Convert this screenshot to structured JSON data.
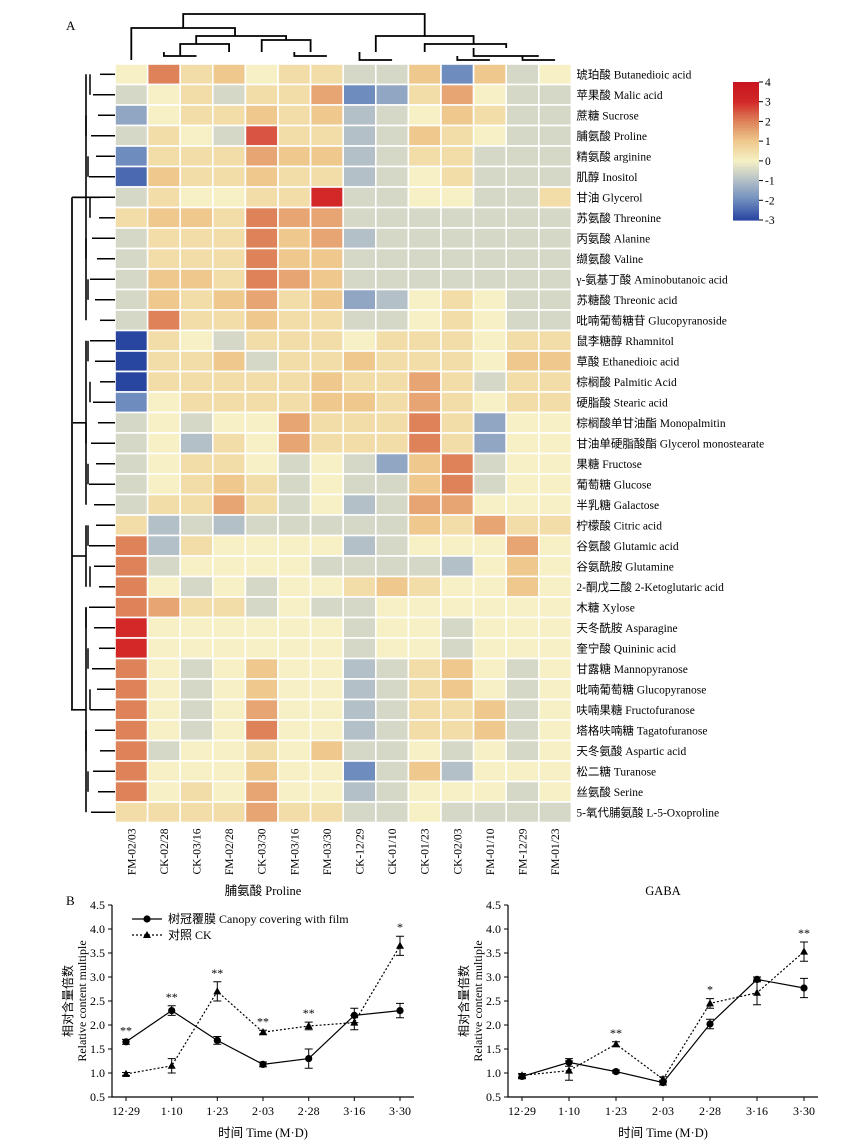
{
  "panels": {
    "a": "A",
    "b": "B"
  },
  "chart_data": [
    {
      "type": "heatmap",
      "columns": [
        "FM-02/03",
        "CK-02/28",
        "CK-03/16",
        "FM-02/28",
        "CK-03/30",
        "FM-03/16",
        "FM-03/30",
        "CK-12/29",
        "CK-01/10",
        "CK-01/23",
        "CK-02/03",
        "FM-01/10",
        "FM-12/29",
        "FM-01/23"
      ],
      "rows": [
        "琥珀酸 Butanedioic acid",
        "苹果酸 Malic acid",
        "蔗糖 Sucrose",
        "脯氨酸 Proline",
        "精氨酸 arginine",
        "肌醇 Inositol",
        "甘油 Glycerol",
        "苏氨酸 Threonine",
        "丙氨酸 Alanine",
        "缬氨酸 Valine",
        "γ-氨基丁酸 Aminobutanoic acid",
        "苏糖酸 Threonic acid",
        "吡喃葡萄糖苷 Glucopyranoside",
        "鼠李糖醇 Rhamnitol",
        "草酸 Ethanedioic acid",
        "棕榈酸 Palmitic Acid",
        "硬脂酸 Stearic acid",
        "棕榈酸单甘油酯 Monopalmitin",
        "甘油单硬脂酸酯 Glycerol monostearate",
        "果糖 Fructose",
        "葡萄糖 Glucose",
        "半乳糖 Galactose",
        "柠檬酸 Citric acid",
        "谷氨酸 Glutamic acid",
        "谷氨酰胺 Glutamine",
        "2-酮戊二酸 2-Ketoglutaric acid",
        "木糖 Xylose",
        "天冬酰胺 Asparagine",
        "奎宁酸 Quininic acid",
        "甘露糖 Mannopyranose",
        "吡喃葡萄糖 Glucopyranose",
        "呋喃果糖 Fructofuranose",
        "塔格呋喃糖 Tagatofuranose",
        "天冬氨酸 Aspartic acid",
        "松二糖 Turanose",
        "丝氨酸 Serine",
        "5-氧代脯氨酸 L-5-Oxoproline"
      ],
      "values": [
        [
          0,
          2,
          0.5,
          1,
          0,
          0.5,
          0.5,
          -0.5,
          -0.5,
          1,
          -2,
          1,
          -0.5,
          0
        ],
        [
          -0.5,
          0,
          0.5,
          -0.5,
          0.5,
          0.5,
          1.5,
          -2,
          -1.5,
          0.5,
          1.5,
          0,
          -0.5,
          -0.5
        ],
        [
          -1.5,
          0,
          0.5,
          0.5,
          1,
          0.5,
          1,
          -1,
          -0.5,
          0,
          1,
          0.5,
          -0.5,
          -0.5
        ],
        [
          -0.5,
          0.5,
          0,
          -0.5,
          2.5,
          0.5,
          0.5,
          -1,
          -0.5,
          1,
          0.5,
          0,
          -0.5,
          -0.5
        ],
        [
          -2,
          0.5,
          0.5,
          0.5,
          1.5,
          1,
          1,
          -1,
          -0.5,
          0.5,
          0.5,
          -0.5,
          -0.5,
          -0.5
        ],
        [
          -2.5,
          1,
          0.5,
          0.5,
          1,
          0.5,
          0.5,
          -1,
          -0.5,
          0,
          0.5,
          -0.5,
          -0.5,
          -0.5
        ],
        [
          -0.5,
          0.5,
          0,
          0,
          0.5,
          0.5,
          3,
          -0.5,
          -0.5,
          0,
          0,
          -0.5,
          -0.5,
          0.5
        ],
        [
          0.5,
          1,
          1,
          0.5,
          2,
          1.5,
          1.5,
          -0.5,
          -0.5,
          -0.5,
          -0.5,
          -0.5,
          -0.5,
          -0.5
        ],
        [
          -0.5,
          0.5,
          0.5,
          0.5,
          2,
          1,
          1.5,
          -1,
          -0.5,
          -0.5,
          -0.5,
          -0.5,
          -0.5,
          -0.5
        ],
        [
          -0.5,
          0.5,
          0.5,
          0.5,
          2,
          1,
          1,
          -0.5,
          -0.5,
          -0.5,
          -0.5,
          -0.5,
          -0.5,
          -0.5
        ],
        [
          -0.5,
          1,
          1,
          0.5,
          2,
          1.5,
          1,
          -0.5,
          -0.5,
          -0.5,
          -0.5,
          -0.5,
          -0.5,
          -0.5
        ],
        [
          -0.5,
          1,
          0.5,
          1,
          1.5,
          0.5,
          1,
          -1.5,
          -1,
          0,
          0.5,
          0,
          -0.5,
          -0.5
        ],
        [
          -0.5,
          2,
          0.5,
          0.5,
          1,
          0.5,
          0.5,
          -0.5,
          -0.5,
          0,
          0.5,
          0,
          -0.5,
          -0.5
        ],
        [
          -3,
          0.5,
          0,
          -0.5,
          0.5,
          0.5,
          0.5,
          0,
          0.5,
          0.5,
          0.5,
          0,
          0.5,
          0.5
        ],
        [
          -3,
          0.5,
          0.5,
          1,
          -0.5,
          0.5,
          0.5,
          1,
          0.5,
          0.5,
          0.5,
          0,
          1,
          1
        ],
        [
          -3,
          0.5,
          0.5,
          0.5,
          0.5,
          0.5,
          1,
          0.5,
          0.5,
          1.5,
          0.5,
          -0.5,
          0.5,
          0.5
        ],
        [
          -2,
          0,
          0.5,
          0.5,
          0.5,
          0.5,
          1,
          1,
          0.5,
          1.5,
          0.5,
          0,
          0.5,
          0.5
        ],
        [
          -0.5,
          0,
          -0.5,
          0,
          0,
          1.5,
          0.5,
          0.5,
          0.5,
          2,
          0.5,
          -1.5,
          0,
          0
        ],
        [
          -0.5,
          0,
          -1,
          0.5,
          0,
          1.5,
          0.5,
          0.5,
          0.5,
          2,
          0.5,
          -1.5,
          0,
          0
        ],
        [
          -0.5,
          0,
          0.5,
          0.5,
          0,
          -0.5,
          0,
          -0.5,
          -1.5,
          1,
          2,
          -0.5,
          0,
          0
        ],
        [
          -0.5,
          0,
          0.5,
          1,
          0.5,
          -0.5,
          0,
          -0.5,
          -0.5,
          1,
          2,
          -0.5,
          0,
          0
        ],
        [
          -0.5,
          0.5,
          0.5,
          1.5,
          0.5,
          -0.5,
          0,
          -1,
          -0.5,
          1.5,
          1.5,
          0,
          0,
          0
        ],
        [
          0.5,
          -1,
          -0.5,
          -1,
          -0.5,
          -0.5,
          -0.5,
          -0.5,
          -0.5,
          1,
          0.5,
          1.5,
          0.5,
          0.5
        ],
        [
          2,
          -1,
          0.5,
          0,
          0,
          0,
          0,
          -1,
          -0.5,
          0,
          0,
          0,
          1.5,
          0
        ],
        [
          2,
          -0.5,
          0,
          0,
          0,
          0,
          -0.5,
          -0.5,
          -0.5,
          -0.5,
          -1,
          0,
          1,
          0
        ],
        [
          2,
          0,
          -0.5,
          0,
          -0.5,
          0,
          0,
          0.5,
          1,
          0.5,
          0,
          0,
          1,
          0
        ],
        [
          2,
          1.5,
          0.5,
          0.5,
          -0.5,
          0,
          -0.5,
          -0.5,
          0,
          0,
          0,
          0,
          0,
          0
        ],
        [
          3,
          0,
          0,
          0,
          0,
          0,
          0,
          -0.5,
          0,
          0,
          -0.5,
          0,
          0,
          0
        ],
        [
          3,
          0,
          0,
          0,
          0,
          0,
          0,
          -0.5,
          0,
          0,
          -0.5,
          0,
          0,
          0
        ],
        [
          2,
          0,
          -0.5,
          0,
          1,
          0,
          0,
          -1,
          -0.5,
          0.5,
          1,
          0,
          -0.5,
          0
        ],
        [
          2,
          0,
          -0.5,
          0,
          1,
          0,
          0,
          -1,
          -0.5,
          0.5,
          1,
          0,
          -0.5,
          0
        ],
        [
          2,
          0,
          -0.5,
          0,
          1.5,
          0,
          0,
          -1,
          -0.5,
          0.5,
          0.5,
          1,
          -0.5,
          0
        ],
        [
          2,
          0,
          -0.5,
          0,
          2,
          0,
          0,
          -1,
          -0.5,
          0.5,
          0.5,
          1,
          -0.5,
          0
        ],
        [
          2,
          -0.5,
          0,
          0,
          0.5,
          0,
          1,
          -0.5,
          -0.5,
          0,
          -0.5,
          0,
          -0.5,
          0
        ],
        [
          2,
          0,
          0,
          0,
          1,
          0,
          0,
          -2,
          -0.5,
          1,
          -1,
          0,
          0,
          0
        ],
        [
          2,
          0,
          0.5,
          0,
          1.5,
          0,
          0,
          -1,
          -0.5,
          0,
          0,
          0,
          -0.5,
          0
        ],
        [
          0.5,
          0.5,
          0.5,
          0.5,
          1.5,
          0.5,
          0.5,
          -0.5,
          -0.5,
          0,
          -0.5,
          -0.5,
          -0.5,
          -0.5
        ]
      ],
      "colorbar": {
        "min": -3,
        "max": 4,
        "ticks": [
          "4",
          "3",
          "2",
          "1",
          "0",
          "-1",
          "-2",
          "-3"
        ]
      }
    },
    {
      "type": "line",
      "title": "脯氨酸 Proline",
      "ylabel_cn": "相对含量倍数",
      "ylabel": "Relative content multiple",
      "xlabel": "时间 Time (M·D)",
      "categories": [
        "12·29",
        "1·10",
        "1·23",
        "2·03",
        "2·28",
        "3·16",
        "3·30"
      ],
      "ylim": [
        0.5,
        4.5
      ],
      "yticks": [
        "0.5",
        "1.0",
        "1.5",
        "2.0",
        "2.5",
        "3.0",
        "3.5",
        "4.0",
        "4.5"
      ],
      "series": [
        {
          "name": "树冠覆膜 Canopy covering with film",
          "marker": "circle",
          "dash": "solid",
          "values": [
            1.65,
            2.3,
            1.68,
            1.18,
            1.3,
            2.2,
            2.3
          ],
          "err": [
            0.05,
            0.1,
            0.08,
            0.05,
            0.2,
            0.15,
            0.15
          ]
        },
        {
          "name": "对照 CK",
          "marker": "triangle",
          "dash": "dotted",
          "values": [
            0.98,
            1.15,
            2.7,
            1.85,
            1.98,
            2.05,
            3.65
          ],
          "err": [
            0.03,
            0.15,
            0.2,
            0.04,
            0.08,
            0.15,
            0.2
          ]
        }
      ],
      "annotations": [
        {
          "x": "12·29",
          "text": "**"
        },
        {
          "x": "1·10",
          "text": "**"
        },
        {
          "x": "1·23",
          "text": "**"
        },
        {
          "x": "2·03",
          "text": "**"
        },
        {
          "x": "2·28",
          "text": "**"
        },
        {
          "x": "3·30",
          "text": "*"
        }
      ]
    },
    {
      "type": "line",
      "title": "GABA",
      "ylabel_cn": "相对含量倍数",
      "ylabel": "Relative content multiple",
      "xlabel": "时间 Time (M·D)",
      "categories": [
        "12·29",
        "1·10",
        "1·23",
        "2·03",
        "2·28",
        "3·16",
        "3·30"
      ],
      "ylim": [
        0.5,
        4.5
      ],
      "yticks": [
        "0.5",
        "1.0",
        "1.5",
        "2.0",
        "2.5",
        "3.0",
        "3.5",
        "4.0",
        "4.5"
      ],
      "series": [
        {
          "name": "树冠覆膜 Canopy covering with film",
          "marker": "circle",
          "dash": "solid",
          "values": [
            0.93,
            1.22,
            1.03,
            0.8,
            2.02,
            2.95,
            2.77
          ],
          "err": [
            0.05,
            0.08,
            0.03,
            0.05,
            0.1,
            0.05,
            0.2
          ]
        },
        {
          "name": "对照 CK",
          "marker": "triangle",
          "dash": "dotted",
          "values": [
            0.95,
            1.05,
            1.6,
            0.87,
            2.45,
            2.67,
            3.53
          ],
          "err": [
            0.04,
            0.2,
            0.05,
            0.05,
            0.1,
            0.25,
            0.2
          ]
        }
      ],
      "annotations": [
        {
          "x": "1·23",
          "text": "**"
        },
        {
          "x": "2·28",
          "text": "*"
        },
        {
          "x": "3·30",
          "text": "**"
        }
      ]
    }
  ]
}
